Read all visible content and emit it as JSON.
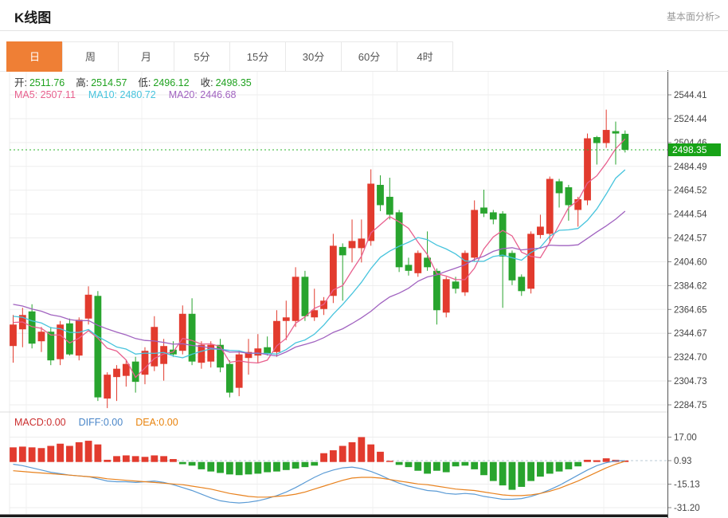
{
  "header": {
    "title": "K线图",
    "link": "基本面分析>"
  },
  "tabs": [
    {
      "label": "日",
      "active": true
    },
    {
      "label": "周",
      "active": false
    },
    {
      "label": "月",
      "active": false
    },
    {
      "label": "5分",
      "active": false
    },
    {
      "label": "15分",
      "active": false
    },
    {
      "label": "30分",
      "active": false
    },
    {
      "label": "60分",
      "active": false
    },
    {
      "label": "4时",
      "active": false
    }
  ],
  "ohlc_row": {
    "label_color": "#333333",
    "value_color": "#1fa21f",
    "items": [
      {
        "name": "open",
        "label": "开:",
        "value": "2511.76"
      },
      {
        "name": "high",
        "label": "高:",
        "value": "2514.57"
      },
      {
        "name": "low",
        "label": "低:",
        "value": "2496.12"
      },
      {
        "name": "close",
        "label": "收:",
        "value": "2498.35"
      }
    ]
  },
  "ma_row": {
    "items": [
      {
        "name": "ma5",
        "text": "MA5: 2507.11",
        "color": "#e8608e"
      },
      {
        "name": "ma10",
        "text": "MA10: 2480.72",
        "color": "#47c4dd"
      },
      {
        "name": "ma20",
        "text": "MA20: 2446.68",
        "color": "#a163c0"
      }
    ]
  },
  "macd_row": {
    "items": [
      {
        "name": "macd",
        "text": "MACD:0.00",
        "color": "#cb2f2f"
      },
      {
        "name": "diff",
        "text": "DIFF:0.00",
        "color": "#4a86c8"
      },
      {
        "name": "dea",
        "text": "DEA:0.00",
        "color": "#e8830d"
      }
    ]
  },
  "colors": {
    "up": "#e23b2e",
    "down": "#28a42e",
    "ma5": "#e8608e",
    "ma10": "#47c4dd",
    "ma20": "#a163c0",
    "diff_line": "#5b9bd5",
    "dea_line": "#e8821e",
    "price_line": "#2eb52e",
    "badge": "#17a317",
    "grid": "#ededed",
    "axis": "#555555",
    "tick_text": "#444444"
  },
  "chart_data": {
    "type": "candlestick",
    "title": "K线图 (daily gold K-line with MACD)",
    "price_ticks": [
      "2544.41",
      "2524.44",
      "2504.46",
      "2484.49",
      "2464.52",
      "2444.54",
      "2424.57",
      "2404.60",
      "2384.62",
      "2364.65",
      "2344.67",
      "2324.70",
      "2304.73",
      "2284.75"
    ],
    "price_range": [
      2284.75,
      2544.41
    ],
    "current_price": "2498.35",
    "current_price_value": 2498.35,
    "last_ohlc": {
      "open": 2511.76,
      "high": 2514.57,
      "low": 2496.12,
      "close": 2498.35
    },
    "ma_values": {
      "ma5": 2507.11,
      "ma10": 2480.72,
      "ma20": 2446.68
    },
    "candles": [
      [
        2334,
        2360,
        2320,
        2352
      ],
      [
        2348,
        2366,
        2333,
        2360
      ],
      [
        2363,
        2369,
        2332,
        2336
      ],
      [
        2338,
        2350,
        2329,
        2346
      ],
      [
        2346,
        2350,
        2318,
        2322
      ],
      [
        2323,
        2355,
        2318,
        2352
      ],
      [
        2353,
        2357,
        2326,
        2327
      ],
      [
        2326,
        2358,
        2322,
        2356
      ],
      [
        2357,
        2384,
        2352,
        2377
      ],
      [
        2376,
        2380,
        2288,
        2291
      ],
      [
        2290,
        2312,
        2282,
        2310
      ],
      [
        2308,
        2318,
        2288,
        2315
      ],
      [
        2309,
        2322,
        2300,
        2319
      ],
      [
        2321,
        2325,
        2295,
        2304
      ],
      [
        2310,
        2333,
        2302,
        2330
      ],
      [
        2317,
        2359,
        2313,
        2350
      ],
      [
        2319,
        2340,
        2305,
        2334
      ],
      [
        2331,
        2338,
        2325,
        2327
      ],
      [
        2330,
        2368,
        2327,
        2361
      ],
      [
        2361,
        2374,
        2318,
        2321
      ],
      [
        2320,
        2338,
        2315,
        2335
      ],
      [
        2321,
        2338,
        2316,
        2335
      ],
      [
        2335,
        2340,
        2312,
        2316
      ],
      [
        2319,
        2322,
        2291,
        2295
      ],
      [
        2299,
        2330,
        2292,
        2327
      ],
      [
        2324,
        2340,
        2310,
        2329
      ],
      [
        2326,
        2344,
        2320,
        2332
      ],
      [
        2333,
        2342,
        2326,
        2328
      ],
      [
        2329,
        2364,
        2325,
        2355
      ],
      [
        2355,
        2372,
        2339,
        2358
      ],
      [
        2355,
        2400,
        2350,
        2392
      ],
      [
        2392,
        2397,
        2355,
        2359
      ],
      [
        2358,
        2382,
        2355,
        2364
      ],
      [
        2365,
        2375,
        2360,
        2372
      ],
      [
        2376,
        2428,
        2370,
        2418
      ],
      [
        2417,
        2420,
        2372,
        2410
      ],
      [
        2416,
        2440,
        2404,
        2422
      ],
      [
        2416,
        2440,
        2404,
        2424
      ],
      [
        2422,
        2482,
        2418,
        2470
      ],
      [
        2469,
        2477,
        2447,
        2452
      ],
      [
        2459,
        2475,
        2440,
        2444
      ],
      [
        2446,
        2448,
        2396,
        2400
      ],
      [
        2402,
        2408,
        2393,
        2397
      ],
      [
        2395,
        2414,
        2392,
        2412
      ],
      [
        2408,
        2430,
        2397,
        2400
      ],
      [
        2397,
        2399,
        2352,
        2364
      ],
      [
        2362,
        2392,
        2358,
        2390
      ],
      [
        2388,
        2392,
        2378,
        2382
      ],
      [
        2379,
        2414,
        2376,
        2412
      ],
      [
        2408,
        2456,
        2405,
        2448
      ],
      [
        2450,
        2465,
        2442,
        2445
      ],
      [
        2446,
        2448,
        2436,
        2440
      ],
      [
        2445,
        2447,
        2366,
        2409
      ],
      [
        2412,
        2414,
        2385,
        2389
      ],
      [
        2392,
        2394,
        2376,
        2380
      ],
      [
        2382,
        2430,
        2378,
        2428
      ],
      [
        2427,
        2444,
        2424,
        2434
      ],
      [
        2428,
        2476,
        2420,
        2474
      ],
      [
        2472,
        2474,
        2450,
        2462
      ],
      [
        2467,
        2469,
        2439,
        2452
      ],
      [
        2448,
        2459,
        2434,
        2457
      ],
      [
        2456,
        2512,
        2452,
        2508
      ],
      [
        2509,
        2510,
        2486,
        2504
      ],
      [
        2504,
        2532,
        2500,
        2515
      ],
      [
        2514,
        2522,
        2486,
        2512
      ],
      [
        2511.76,
        2514.57,
        2496.12,
        2498.35
      ]
    ],
    "ma_seed": [
      2390,
      2388,
      2386,
      2384,
      2382,
      2380,
      2378,
      2376,
      2374,
      2372,
      2370,
      2368,
      2366,
      2364,
      2362,
      2360,
      2358,
      2356,
      2353,
      2350
    ],
    "macd": {
      "ticks": [
        "17.00",
        "0.93",
        "-15.13",
        "-31.20"
      ],
      "tick_values": [
        17.0,
        0.93,
        -15.13,
        -31.2
      ],
      "hist": [
        10,
        10.5,
        10,
        9.5,
        11,
        12.5,
        11,
        13.5,
        14.5,
        12,
        1.5,
        4,
        4.5,
        4,
        3.5,
        4.5,
        4,
        2,
        -1.5,
        -2.5,
        -5,
        -6.5,
        -7.5,
        -8.5,
        -9,
        -8.5,
        -8,
        -7,
        -6.5,
        -5.5,
        -4.5,
        -3.5,
        -2.5,
        6,
        8,
        11,
        13.5,
        17,
        12,
        7,
        0.8,
        -2,
        -3.5,
        -6,
        -8,
        -6,
        -7,
        -3,
        -2.5,
        -5,
        -9,
        -13,
        -16,
        -19,
        -17,
        -13,
        -10,
        -8,
        -6.5,
        -5,
        -3,
        1.5,
        1.2,
        2.5,
        1.5,
        1
      ],
      "diff": [
        -1.5,
        -2.5,
        -4,
        -5.5,
        -7,
        -8,
        -9,
        -9.5,
        -10,
        -11.5,
        -13,
        -13.5,
        -13.5,
        -14,
        -13.5,
        -13,
        -14,
        -15.5,
        -17.5,
        -19.5,
        -22,
        -24.5,
        -26.5,
        -27.5,
        -28,
        -27.5,
        -26.5,
        -25,
        -23,
        -20.5,
        -17.5,
        -14,
        -10.5,
        -7.5,
        -5.5,
        -4,
        -3.5,
        -4.5,
        -6.5,
        -9,
        -12,
        -14.5,
        -16.5,
        -18,
        -19.5,
        -20,
        -21.5,
        -22,
        -21.5,
        -22,
        -23.5,
        -24.5,
        -25.5,
        -25.5,
        -25,
        -23.5,
        -21.5,
        -19,
        -16,
        -12.5,
        -9,
        -5.5,
        -2.5,
        -0.5,
        0.7,
        0.9
      ],
      "dea": [
        -6,
        -6.5,
        -7,
        -7.5,
        -8,
        -8.5,
        -9,
        -9.5,
        -10,
        -10.5,
        -11.5,
        -12,
        -12.5,
        -13,
        -13.5,
        -14,
        -14.5,
        -15,
        -15.5,
        -16.5,
        -17.5,
        -18.5,
        -20,
        -21.5,
        -22.5,
        -23.5,
        -24,
        -24,
        -23.5,
        -23,
        -22,
        -20.5,
        -18.5,
        -16.5,
        -14.5,
        -12.5,
        -11,
        -10.5,
        -10.5,
        -11,
        -12,
        -13,
        -14,
        -15,
        -15.5,
        -16.5,
        -17.5,
        -18.5,
        -19,
        -19.5,
        -20.5,
        -21.5,
        -22.5,
        -23,
        -23,
        -22.5,
        -21.5,
        -20,
        -18,
        -15.5,
        -13,
        -10,
        -7,
        -4,
        -1.5,
        0.5
      ]
    }
  }
}
